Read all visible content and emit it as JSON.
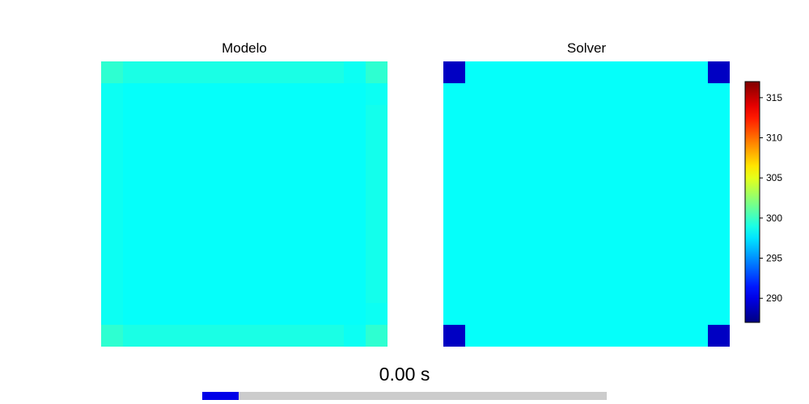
{
  "chart_data": [
    {
      "type": "heatmap",
      "title": "Modelo",
      "grid_size": 13,
      "base_value": 298.4,
      "overrides": [
        {
          "rows": [
            0,
            12
          ],
          "cols": [
            0,
            12
          ],
          "value": 299.6
        },
        {
          "rows": [
            0,
            12
          ],
          "cols": [
            1,
            2,
            3,
            4,
            5,
            6,
            7,
            8,
            9,
            10,
            11
          ],
          "value": 299.0
        },
        {
          "rows": [
            1,
            2,
            3,
            4,
            5,
            6,
            7,
            8,
            9,
            10,
            11
          ],
          "cols": [
            0
          ],
          "value": 298.6
        },
        {
          "rows": [
            1,
            11
          ],
          "cols": [
            12
          ],
          "value": 298.6
        },
        {
          "rows": [
            2,
            3,
            4,
            5,
            6,
            7,
            8,
            9,
            10
          ],
          "cols": [
            12
          ],
          "value": 298.8
        },
        {
          "rows": [
            0,
            12
          ],
          "cols": [
            11
          ],
          "value": 298.6
        }
      ]
    },
    {
      "type": "heatmap",
      "title": "Solver",
      "grid_size": 13,
      "base_value": 298.4,
      "overrides": [
        {
          "rows": [
            0,
            12
          ],
          "cols": [
            0,
            12
          ],
          "value": 289.0
        }
      ]
    }
  ],
  "colorbar": {
    "colormap": "jet",
    "vmin": 287.0,
    "vmax": 317.0,
    "ticks": [
      290,
      295,
      300,
      305,
      310,
      315
    ],
    "tick_labels": [
      "290",
      "295",
      "300",
      "305",
      "310",
      "315"
    ]
  },
  "time_label": "0.00 s",
  "progress": 0.09,
  "colors": {
    "progress_fill": "#0000e8",
    "progress_track": "#cccccc"
  }
}
